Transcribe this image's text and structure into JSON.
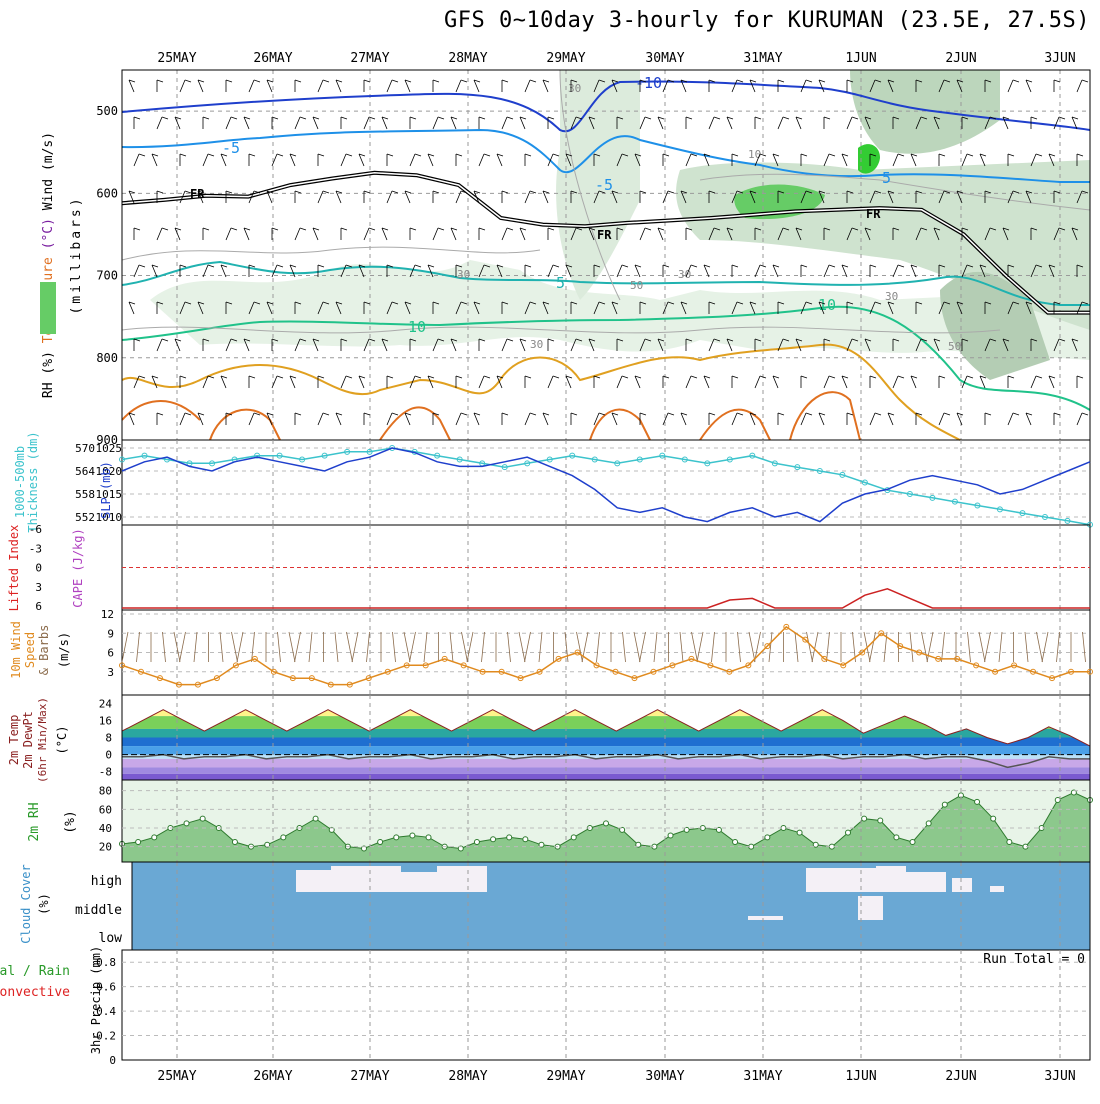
{
  "header": {
    "title": "GFS 0~10day 3-hourly for KURUMAN (23.5E, 27.5S)"
  },
  "chart_data": [
    {
      "type": "area",
      "panel": "upper-air",
      "dates": [
        "25MAY",
        "26MAY",
        "27MAY",
        "28MAY",
        "29MAY",
        "30MAY",
        "31MAY",
        "1JUN",
        "2JUN",
        "3JUN"
      ],
      "ylabel": [
        "RH (%)",
        "Temperature (°C)",
        "Wind (m/s)"
      ],
      "ylabel2": "(millibars)",
      "yticks": [
        "500",
        "600",
        "700",
        "800",
        "900"
      ],
      "ylim": [
        450,
        900
      ],
      "freezing_label": "FR",
      "freezing_level_mb": [
        612,
        608,
        603,
        604,
        590,
        582,
        575,
        578,
        590,
        630,
        638,
        640,
        636,
        633,
        630,
        626,
        622,
        620,
        618,
        620,
        650,
        700,
        745,
        745
      ],
      "contour_labels": [
        "-10",
        "-5",
        "-5",
        "5",
        "5",
        "10",
        "10",
        "30",
        "30",
        "30",
        "50",
        "50",
        "30",
        "30",
        "10"
      ]
    },
    {
      "type": "line",
      "panel": "thickness-slp",
      "ylabel_left": [
        "1000-500mb",
        "Thickness (dm)"
      ],
      "ylabel_right": "SLP (mb)",
      "yticks_left": [
        "570",
        "564",
        "558",
        "552"
      ],
      "yticks_right": [
        "1025",
        "1020",
        "1015",
        "1010"
      ],
      "series": [
        {
          "name": "SLP",
          "color": "#1f3fcc",
          "values": [
            1020,
            1022,
            1023,
            1021,
            1020,
            1022,
            1023,
            1022,
            1021,
            1020,
            1022,
            1023,
            1025,
            1024,
            1022,
            1021,
            1021,
            1022,
            1023,
            1021,
            1019,
            1016,
            1012,
            1011,
            1012,
            1010,
            1009,
            1011,
            1012,
            1010,
            1011,
            1009,
            1013,
            1015,
            1016,
            1018,
            1019,
            1018,
            1017,
            1015,
            1016,
            1018,
            1020,
            1022
          ]
        },
        {
          "name": "Thickness",
          "color": "#3cc3cc",
          "values": [
            567,
            568,
            567,
            566,
            566,
            567,
            568,
            568,
            567,
            568,
            569,
            569,
            570,
            569,
            568,
            567,
            566,
            565,
            566,
            567,
            568,
            567,
            566,
            567,
            568,
            567,
            566,
            567,
            568,
            566,
            565,
            564,
            563,
            561,
            559,
            558,
            557,
            556,
            555,
            554,
            553,
            552,
            551,
            550
          ]
        }
      ]
    },
    {
      "type": "line",
      "panel": "cape-lifted-index",
      "ylabel": [
        "Lifted Index",
        "CAPE (J/kg)"
      ],
      "yticks": [
        "-6",
        "-3",
        "0",
        "3",
        "6"
      ],
      "series": [
        {
          "name": "CAPE",
          "color": "#cc2222",
          "values": [
            0,
            0,
            0,
            0,
            0,
            0,
            0,
            0,
            0,
            0,
            0,
            0,
            0,
            0,
            0,
            0,
            0,
            0,
            0,
            0,
            0,
            0,
            0,
            0,
            0,
            0,
            0,
            5,
            6,
            0,
            0,
            0,
            0,
            8,
            12,
            6,
            0,
            0,
            0,
            0,
            0,
            0,
            0,
            0
          ]
        }
      ]
    },
    {
      "type": "line",
      "panel": "10m-wind",
      "ylabel": [
        "10m Wind",
        "Speed",
        "& Barbs",
        "(m/s)"
      ],
      "yticks": [
        "12",
        "9",
        "6",
        "3"
      ],
      "series": [
        {
          "name": "10m Wind Speed",
          "color": "#e08a1e",
          "values": [
            4,
            3,
            2,
            1,
            1,
            2,
            4,
            5,
            3,
            2,
            2,
            1,
            1,
            2,
            3,
            4,
            4,
            5,
            4,
            3,
            3,
            2,
            3,
            5,
            6,
            4,
            3,
            2,
            3,
            4,
            5,
            4,
            3,
            4,
            7,
            10,
            8,
            5,
            4,
            6,
            9,
            7,
            6,
            5,
            5,
            4,
            3,
            4,
            3,
            2,
            3,
            3
          ]
        }
      ]
    },
    {
      "type": "area",
      "panel": "2m-temp",
      "ylabel": [
        "2m Temp",
        "2m DewPt",
        "(6hr Min/Max)",
        "(°C)"
      ],
      "yticks": [
        "24",
        "16",
        "8",
        "0",
        "-8"
      ],
      "series": [
        {
          "name": "2m Temp",
          "values": [
            11,
            16,
            21,
            16,
            11,
            16,
            21,
            16,
            11,
            16,
            21,
            16,
            11,
            16,
            21,
            16,
            11,
            16,
            21,
            16,
            11,
            16,
            21,
            16,
            11,
            16,
            21,
            16,
            11,
            16,
            21,
            16,
            11,
            16,
            21,
            16,
            10,
            14,
            18,
            14,
            9,
            12,
            8,
            5,
            8,
            13,
            9,
            4
          ]
        },
        {
          "name": "2m DewPt",
          "values": [
            -1,
            -1,
            0,
            -2,
            -1,
            -1,
            0,
            -2,
            -1,
            -1,
            0,
            -2,
            -1,
            -1,
            0,
            -2,
            -1,
            -1,
            0,
            -2,
            -1,
            -1,
            0,
            -2,
            -1,
            -1,
            0,
            -2,
            -1,
            -1,
            0,
            -2,
            -1,
            -1,
            0,
            -2,
            -1,
            -1,
            0,
            -2,
            -1,
            -1,
            -3,
            -6,
            -4,
            -1,
            -2,
            -2
          ]
        }
      ]
    },
    {
      "type": "area",
      "panel": "2m-rh",
      "ylabel": [
        "2m RH",
        "(%)"
      ],
      "yticks": [
        "80",
        "60",
        "40",
        "20"
      ],
      "series": [
        {
          "name": "2m RH",
          "values": [
            23,
            25,
            30,
            40,
            45,
            50,
            40,
            25,
            20,
            22,
            30,
            40,
            50,
            38,
            20,
            18,
            25,
            30,
            32,
            30,
            20,
            18,
            25,
            28,
            30,
            28,
            22,
            20,
            30,
            40,
            45,
            38,
            22,
            20,
            32,
            38,
            40,
            38,
            25,
            20,
            30,
            40,
            35,
            22,
            20,
            35,
            50,
            48,
            30,
            25,
            45,
            65,
            75,
            68,
            50,
            25,
            20,
            40,
            70,
            78,
            70
          ]
        }
      ]
    },
    {
      "type": "bar",
      "panel": "cloud-cover",
      "ylabel": [
        "Cloud Cover",
        "(%)"
      ],
      "levels": [
        "high",
        "middle",
        "low"
      ],
      "series": [
        {
          "name": "high",
          "values": [
            0,
            0,
            0,
            0,
            0,
            0,
            0,
            0,
            0,
            0,
            0,
            0,
            0,
            0,
            0,
            0,
            0,
            0,
            0,
            0,
            0,
            0,
            0,
            0,
            0,
            0,
            0,
            0,
            0,
            0,
            0,
            0,
            0,
            0,
            0,
            0,
            0,
            0,
            0,
            0,
            0,
            0,
            0,
            0,
            0,
            0,
            0,
            0,
            0,
            0,
            0,
            0,
            0,
            0,
            0,
            0,
            0,
            0,
            0,
            0,
            0,
            0,
            0,
            0,
            0,
            0,
            0,
            0,
            0,
            0,
            0,
            0,
            0,
            0,
            0,
            0,
            0,
            0,
            0,
            0,
            0,
            0
          ]
        }
      ]
    },
    {
      "type": "bar",
      "panel": "precip",
      "ylabel": [
        "3hr Precip (mm)"
      ],
      "legend": [
        "Total / Rain",
        "Convective"
      ],
      "yticks": [
        "0.8",
        "0.6",
        "0.4",
        "0.2",
        "0"
      ],
      "ylim": [
        0,
        0.9
      ],
      "run_total": "Run Total = 0",
      "values": []
    }
  ]
}
